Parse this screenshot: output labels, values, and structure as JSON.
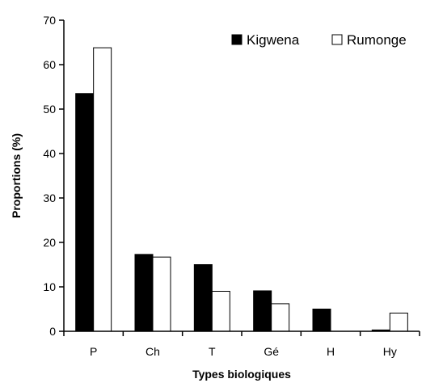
{
  "chart_data": {
    "type": "bar",
    "xlabel": "Types biologiques",
    "ylabel": "Proportions (%)",
    "ylim": [
      0,
      70
    ],
    "yticks": [
      0,
      10,
      20,
      30,
      40,
      50,
      60,
      70
    ],
    "categories": [
      "P",
      "Ch",
      "T",
      "Gé",
      "H",
      "Hy"
    ],
    "series": [
      {
        "name": "Kigwena",
        "values": [
          53.5,
          17.3,
          15.0,
          9.1,
          5.0,
          0.3
        ],
        "color": "#000000"
      },
      {
        "name": "Rumonge",
        "values": [
          63.8,
          16.7,
          9.0,
          6.2,
          0.0,
          4.1
        ],
        "color": "#ffffff"
      }
    ],
    "legend_position": "top-right",
    "grid": false
  }
}
